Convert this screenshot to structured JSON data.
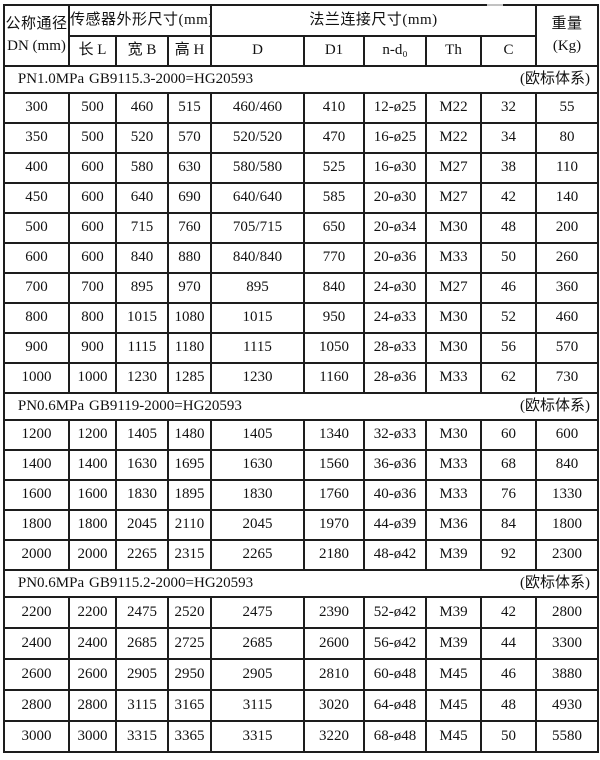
{
  "page": {
    "artifact_note": "cropped-text-remnant-top-edge"
  },
  "table": {
    "header": {
      "dn_line1": "公称通径",
      "dn_line2": "DN (mm)",
      "sensor_group": "传感器外形尺寸(mm)",
      "flange_group": "法兰连接尺寸(mm)",
      "weight_line1": "重量",
      "weight_line2": "(Kg)",
      "sub": [
        "长 L",
        "宽 B",
        "高 H",
        "D",
        "D1",
        "n-d₀",
        "Th",
        "C"
      ]
    },
    "column_keys": [
      "dn",
      "length-l",
      "width-b",
      "height-h",
      "d",
      "d1",
      "n-d0",
      "th",
      "c",
      "weight"
    ],
    "sections": [
      {
        "pn": "PN1.0MPa",
        "standard": "GB9115.3-2000=HG20593",
        "note": "(欧标体系)",
        "rows": [
          [
            "300",
            "500",
            "460",
            "515",
            "460/460",
            "410",
            "12-ø25",
            "M22",
            "32",
            "55"
          ],
          [
            "350",
            "500",
            "520",
            "570",
            "520/520",
            "470",
            "16-ø25",
            "M22",
            "34",
            "80"
          ],
          [
            "400",
            "600",
            "580",
            "630",
            "580/580",
            "525",
            "16-ø30",
            "M27",
            "38",
            "110"
          ],
          [
            "450",
            "600",
            "640",
            "690",
            "640/640",
            "585",
            "20-ø30",
            "M27",
            "42",
            "140"
          ],
          [
            "500",
            "600",
            "715",
            "760",
            "705/715",
            "650",
            "20-ø34",
            "M30",
            "48",
            "200"
          ],
          [
            "600",
            "600",
            "840",
            "880",
            "840/840",
            "770",
            "20-ø36",
            "M33",
            "50",
            "260"
          ],
          [
            "700",
            "700",
            "895",
            "970",
            "895",
            "840",
            "24-ø30",
            "M27",
            "46",
            "360"
          ],
          [
            "800",
            "800",
            "1015",
            "1080",
            "1015",
            "950",
            "24-ø33",
            "M30",
            "52",
            "460"
          ],
          [
            "900",
            "900",
            "1115",
            "1180",
            "1115",
            "1050",
            "28-ø33",
            "M30",
            "56",
            "570"
          ],
          [
            "1000",
            "1000",
            "1230",
            "1285",
            "1230",
            "1160",
            "28-ø36",
            "M33",
            "62",
            "730"
          ]
        ]
      },
      {
        "pn": "PN0.6MPa",
        "standard": "GB9119-2000=HG20593",
        "note": "(欧标体系)",
        "rows": [
          [
            "1200",
            "1200",
            "1405",
            "1480",
            "1405",
            "1340",
            "32-ø33",
            "M30",
            "60",
            "600"
          ],
          [
            "1400",
            "1400",
            "1630",
            "1695",
            "1630",
            "1560",
            "36-ø36",
            "M33",
            "68",
            "840"
          ],
          [
            "1600",
            "1600",
            "1830",
            "1895",
            "1830",
            "1760",
            "40-ø36",
            "M33",
            "76",
            "1330"
          ],
          [
            "1800",
            "1800",
            "2045",
            "2110",
            "2045",
            "1970",
            "44-ø39",
            "M36",
            "84",
            "1800"
          ],
          [
            "2000",
            "2000",
            "2265",
            "2315",
            "2265",
            "2180",
            "48-ø42",
            "M39",
            "92",
            "2300"
          ]
        ]
      },
      {
        "pn": "PN0.6MPa",
        "standard": "GB9115.2-2000=HG20593",
        "note": "(欧标体系)",
        "rows": [
          [
            "2200",
            "2200",
            "2475",
            "2520",
            "2475",
            "2390",
            "52-ø42",
            "M39",
            "42",
            "2800"
          ],
          [
            "2400",
            "2400",
            "2685",
            "2725",
            "2685",
            "2600",
            "56-ø42",
            "M39",
            "44",
            "3300"
          ],
          [
            "2600",
            "2600",
            "2905",
            "2950",
            "2905",
            "2810",
            "60-ø48",
            "M45",
            "46",
            "3880"
          ],
          [
            "2800",
            "2800",
            "3115",
            "3165",
            "3115",
            "3020",
            "64-ø48",
            "M45",
            "48",
            "4930"
          ],
          [
            "3000",
            "3000",
            "3315",
            "3365",
            "3315",
            "3220",
            "68-ø48",
            "M45",
            "50",
            "5580"
          ]
        ]
      }
    ]
  }
}
